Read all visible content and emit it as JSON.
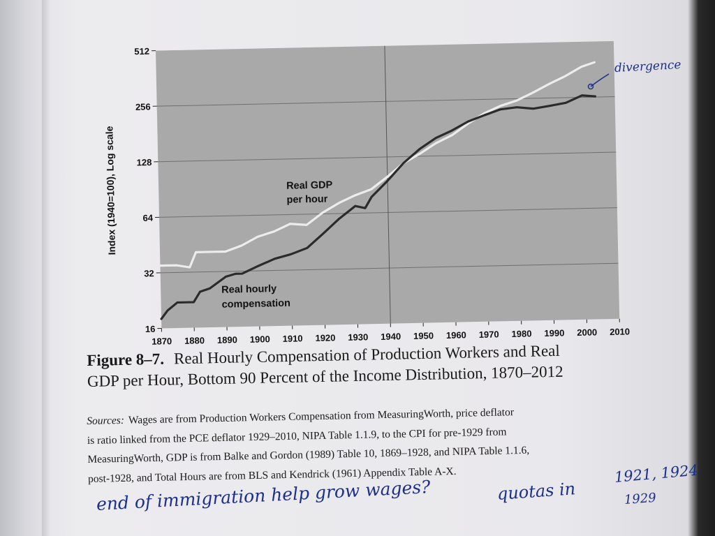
{
  "chart_data": {
    "type": "line",
    "xlabel": "",
    "ylabel": "Index (1940=100), Log scale",
    "y_scale": "log2",
    "ylim": [
      16,
      512
    ],
    "xlim": [
      1870,
      2010
    ],
    "y_ticks": [
      16,
      32,
      64,
      128,
      256,
      512
    ],
    "y_tick_labels": [
      "16",
      "32",
      "64",
      "128",
      "256",
      "512"
    ],
    "x_ticks": [
      1870,
      1880,
      1890,
      1900,
      1910,
      1920,
      1930,
      1940,
      1950,
      1960,
      1970,
      1980,
      1990,
      2000,
      2010
    ],
    "x_tick_labels": [
      "1870",
      "1880",
      "1890",
      "1900",
      "1910",
      "1920",
      "1930",
      "1940",
      "1950",
      "1960",
      "1970",
      "1980",
      "1990",
      "2000",
      "2010"
    ],
    "grid": "horizontal at y ticks, vertical at 1940",
    "background": "#a9a9a9",
    "series": [
      {
        "name": "Real GDP per hour",
        "color": "#ececec",
        "x": [
          1870,
          1875,
          1879,
          1881,
          1885,
          1890,
          1895,
          1900,
          1905,
          1910,
          1915,
          1920,
          1925,
          1930,
          1935,
          1940,
          1945,
          1950,
          1955,
          1960,
          1965,
          1970,
          1975,
          1980,
          1985,
          1990,
          1995,
          2000,
          2004
        ],
        "y": [
          35,
          35,
          34,
          41,
          41,
          41,
          44,
          49,
          52,
          57,
          56,
          65,
          73,
          80,
          86,
          100,
          118,
          132,
          150,
          165,
          190,
          215,
          235,
          250,
          275,
          305,
          335,
          375,
          395
        ]
      },
      {
        "name": "Real hourly compensation",
        "color": "#2b2b2b",
        "x": [
          1870,
          1872,
          1875,
          1880,
          1882,
          1885,
          1890,
          1893,
          1895,
          1900,
          1905,
          1910,
          1915,
          1920,
          1925,
          1930,
          1933,
          1935,
          1940,
          1945,
          1950,
          1955,
          1960,
          1965,
          1970,
          1975,
          1980,
          1985,
          1990,
          1995,
          2000,
          2004
        ],
        "y": [
          18,
          20,
          22,
          22,
          25,
          26,
          30,
          31,
          31,
          34,
          37,
          39,
          42,
          50,
          60,
          70,
          68,
          78,
          95,
          118,
          140,
          160,
          175,
          195,
          210,
          225,
          230,
          225,
          232,
          240,
          262,
          258
        ]
      }
    ],
    "annotations": [
      "Real GDP per hour",
      "Real hourly compensation"
    ]
  },
  "labels": {
    "gdp_line1": "Real GDP",
    "gdp_line2": "per hour",
    "comp_line1": "Real hourly",
    "comp_line2": "compensation"
  },
  "caption": {
    "figure_number": "Figure 8–7.",
    "title_line1": "Real Hourly Compensation of Production Workers and Real",
    "title_line2": "GDP per Hour, Bottom 90 Percent of the Income Distribution, 1870–2012",
    "sources_lead": "Sources:",
    "sources_line1": "Wages are from Production Workers Compensation from MeasuringWorth, price deflator",
    "sources_line2": "is ratio linked from the PCE deflator 1929–2010, NIPA Table 1.1.9, to the CPI for pre-1929 from",
    "sources_line3": "MeasuringWorth, GDP is from Balke and Gordon (1989) Table 10, 1869–1928, and NIPA Table 1.1.6,",
    "sources_line4": "post-1928, and Total Hours are from BLS and Kendrick (1961) Appendix Table A-X."
  },
  "handwriting": {
    "divergence": "divergence",
    "note": "end of immigration help grow wages?",
    "quotas": "quotas in",
    "years": "1921, 1924",
    "year3": "1929"
  }
}
